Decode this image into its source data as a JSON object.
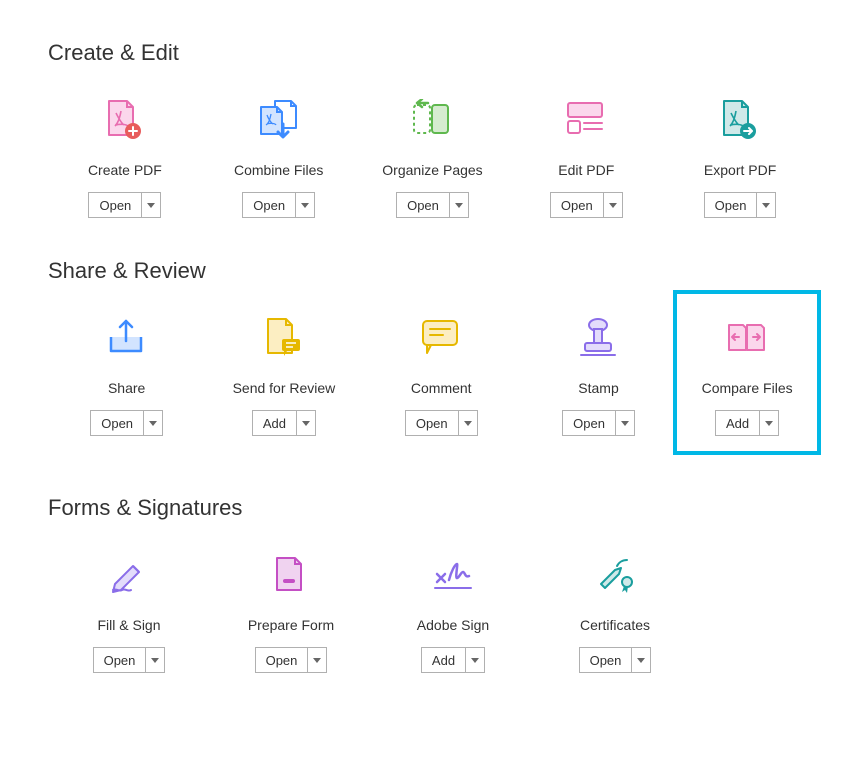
{
  "sections": [
    {
      "title": "Create & Edit",
      "tools": [
        {
          "label": "Create PDF",
          "button": "Open",
          "icon": "create-pdf"
        },
        {
          "label": "Combine Files",
          "button": "Open",
          "icon": "combine-files"
        },
        {
          "label": "Organize Pages",
          "button": "Open",
          "icon": "organize-pages"
        },
        {
          "label": "Edit PDF",
          "button": "Open",
          "icon": "edit-pdf"
        },
        {
          "label": "Export PDF",
          "button": "Open",
          "icon": "export-pdf"
        }
      ]
    },
    {
      "title": "Share & Review",
      "tools": [
        {
          "label": "Share",
          "button": "Open",
          "icon": "share"
        },
        {
          "label": "Send for Review",
          "button": "Add",
          "icon": "send-review"
        },
        {
          "label": "Comment",
          "button": "Open",
          "icon": "comment"
        },
        {
          "label": "Stamp",
          "button": "Open",
          "icon": "stamp"
        },
        {
          "label": "Compare Files",
          "button": "Add",
          "icon": "compare-files",
          "highlighted": true
        }
      ]
    },
    {
      "title": "Forms & Signatures",
      "tools": [
        {
          "label": "Fill & Sign",
          "button": "Open",
          "icon": "fill-sign"
        },
        {
          "label": "Prepare Form",
          "button": "Open",
          "icon": "prepare-form"
        },
        {
          "label": "Adobe Sign",
          "button": "Add",
          "icon": "adobe-sign"
        },
        {
          "label": "Certificates",
          "button": "Open",
          "icon": "certificates"
        }
      ]
    }
  ],
  "colors": {
    "highlight_border": "#00b8e6",
    "pink": "#e86db0",
    "pink_fill": "#fbd7ec",
    "blue": "#3d8bff",
    "blue_fill": "#d2e4ff",
    "green": "#5fb84e",
    "green_fill": "#d6ecd0",
    "teal": "#1a9e9e",
    "teal_fill": "#cfe9e9",
    "yellow": "#e6b800",
    "yellow_fill": "#fceec2",
    "purple": "#8a6de9",
    "purple_fill": "#e3dcfb",
    "magenta": "#c44fc4",
    "magenta_fill": "#f0d3f0",
    "red": "#e85c5c"
  }
}
